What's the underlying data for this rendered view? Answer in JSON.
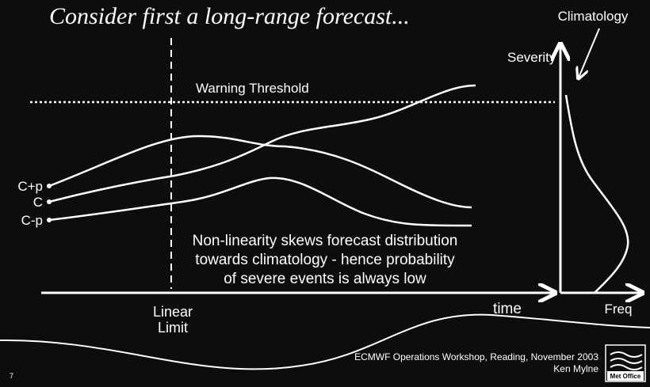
{
  "header": {
    "title": "Consider first a long-range forecast..."
  },
  "diagram": {
    "climatology_label": "Climatology",
    "severity_label": "Severity",
    "warning_threshold_label": "Warning Threshold",
    "scenarios": [
      "C+p",
      "C",
      "C-p"
    ],
    "note_lines": [
      "Non-linearity skews forecast distribution",
      "towards climatology - hence probability",
      "of severe events is always low"
    ],
    "linear_limit_lines": [
      "Linear",
      "Limit"
    ],
    "time_label": "time",
    "freq_label": "Freq"
  },
  "footer": {
    "event": "ECMWF Operations Workshop, Reading, November 2003",
    "author": "Ken Mylne",
    "page_number": "7",
    "logo": "Met Office"
  }
}
